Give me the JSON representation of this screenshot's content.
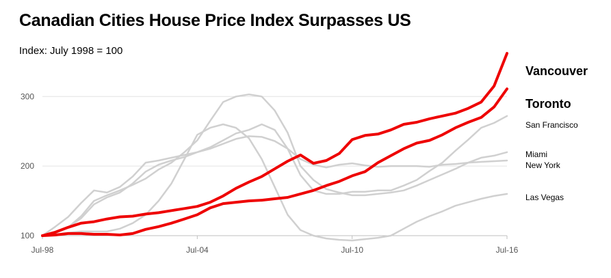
{
  "chart_data": {
    "type": "line",
    "title": "Canadian Cities House Price Index Surpasses US",
    "subtitle": "Index: July 1998 = 100",
    "xlabel": "",
    "ylabel": "",
    "x_range": [
      1998.5,
      2016.5
    ],
    "ylim": [
      100,
      370
    ],
    "y_ticks": [
      100,
      200,
      300
    ],
    "x_tick_labels": [
      "Jul-98",
      "Jul-04",
      "Jul-10",
      "Jul-16"
    ],
    "x_tick_values": [
      1998.5,
      2004.5,
      2010.5,
      2016.5
    ],
    "grid": "horizontal",
    "legend": "inline-right",
    "colors": {
      "canada": "#ee0000",
      "us": "#d0d0d0"
    },
    "series": [
      {
        "name": "Vancouver",
        "group": "canada",
        "x": [
          1998.5,
          1999,
          1999.5,
          2000,
          2000.5,
          2001,
          2001.5,
          2002,
          2002.5,
          2003,
          2003.5,
          2004,
          2004.5,
          2005,
          2005.5,
          2006,
          2006.5,
          2007,
          2007.5,
          2008,
          2008.5,
          2009,
          2009.5,
          2010,
          2010.5,
          2011,
          2011.5,
          2012,
          2012.5,
          2013,
          2013.5,
          2014,
          2014.5,
          2015,
          2015.5,
          2016,
          2016.5
        ],
        "values": [
          100,
          105,
          112,
          118,
          120,
          124,
          127,
          128,
          131,
          133,
          136,
          139,
          142,
          148,
          157,
          168,
          177,
          185,
          196,
          207,
          216,
          204,
          208,
          218,
          238,
          244,
          246,
          252,
          260,
          263,
          268,
          272,
          276,
          283,
          292,
          315,
          362
        ]
      },
      {
        "name": "Toronto",
        "group": "canada",
        "x": [
          1998.5,
          1999,
          1999.5,
          2000,
          2000.5,
          2001,
          2001.5,
          2002,
          2002.5,
          2003,
          2003.5,
          2004,
          2004.5,
          2005,
          2005.5,
          2006,
          2006.5,
          2007,
          2007.5,
          2008,
          2008.5,
          2009,
          2009.5,
          2010,
          2010.5,
          2011,
          2011.5,
          2012,
          2012.5,
          2013,
          2013.5,
          2014,
          2014.5,
          2015,
          2015.5,
          2016,
          2016.5
        ],
        "values": [
          100,
          101,
          103,
          103,
          102,
          102,
          101,
          103,
          109,
          113,
          118,
          124,
          130,
          140,
          146,
          148,
          150,
          151,
          153,
          155,
          160,
          165,
          172,
          178,
          186,
          192,
          205,
          215,
          225,
          233,
          237,
          245,
          255,
          263,
          270,
          285,
          311
        ]
      },
      {
        "name": "San Francisco",
        "group": "us",
        "x": [
          1998.5,
          1999,
          1999.5,
          2000,
          2000.5,
          2001,
          2001.5,
          2002,
          2002.5,
          2003,
          2003.5,
          2004,
          2004.5,
          2005,
          2005.5,
          2006,
          2006.5,
          2007,
          2007.5,
          2008,
          2008.5,
          2009,
          2009.5,
          2010,
          2010.5,
          2011,
          2011.5,
          2012,
          2012.5,
          2013,
          2013.5,
          2014,
          2014.5,
          2015,
          2015.5,
          2016,
          2016.5
        ],
        "values": [
          100,
          113,
          127,
          147,
          165,
          162,
          170,
          185,
          205,
          208,
          212,
          216,
          220,
          227,
          237,
          247,
          252,
          260,
          252,
          225,
          187,
          165,
          160,
          160,
          163,
          163,
          165,
          165,
          172,
          180,
          193,
          205,
          222,
          238,
          255,
          262,
          272
        ]
      },
      {
        "name": "Miami",
        "group": "us",
        "x": [
          1998.5,
          1999,
          1999.5,
          2000,
          2000.5,
          2001,
          2001.5,
          2002,
          2002.5,
          2003,
          2003.5,
          2004,
          2004.5,
          2005,
          2005.5,
          2006,
          2006.5,
          2007,
          2007.5,
          2008,
          2008.5,
          2009,
          2009.5,
          2010,
          2010.5,
          2011,
          2011.5,
          2012,
          2012.5,
          2013,
          2013.5,
          2014,
          2014.5,
          2015,
          2015.5,
          2016,
          2016.5
        ],
        "values": [
          100,
          105,
          112,
          128,
          150,
          158,
          165,
          173,
          182,
          195,
          205,
          220,
          237,
          265,
          292,
          300,
          303,
          300,
          280,
          248,
          200,
          180,
          167,
          162,
          158,
          158,
          160,
          162,
          165,
          172,
          180,
          188,
          196,
          205,
          212,
          215,
          220
        ]
      },
      {
        "name": "New York",
        "group": "us",
        "x": [
          1998.5,
          1999,
          1999.5,
          2000,
          2000.5,
          2001,
          2001.5,
          2002,
          2002.5,
          2003,
          2003.5,
          2004,
          2004.5,
          2005,
          2005.5,
          2006,
          2006.5,
          2007,
          2007.5,
          2008,
          2008.5,
          2009,
          2009.5,
          2010,
          2010.5,
          2011,
          2011.5,
          2012,
          2012.5,
          2013,
          2013.5,
          2014,
          2014.5,
          2015,
          2015.5,
          2016,
          2016.5
        ],
        "values": [
          100,
          104,
          112,
          125,
          145,
          155,
          162,
          175,
          192,
          202,
          208,
          213,
          220,
          225,
          232,
          239,
          243,
          242,
          236,
          225,
          210,
          202,
          198,
          202,
          204,
          201,
          199,
          200,
          200,
          200,
          199,
          202,
          203,
          205,
          206,
          207,
          208
        ]
      },
      {
        "name": "Las Vegas",
        "group": "us",
        "x": [
          1998.5,
          1999,
          1999.5,
          2000,
          2000.5,
          2001,
          2001.5,
          2002,
          2002.5,
          2003,
          2003.5,
          2004,
          2004.5,
          2005,
          2005.5,
          2006,
          2006.5,
          2007,
          2007.5,
          2008,
          2008.5,
          2009,
          2009.5,
          2010,
          2010.5,
          2011,
          2011.5,
          2012,
          2012.5,
          2013,
          2013.5,
          2014,
          2014.5,
          2015,
          2015.5,
          2016,
          2016.5
        ],
        "values": [
          100,
          102,
          104,
          106,
          106,
          106,
          110,
          118,
          130,
          150,
          175,
          210,
          245,
          255,
          260,
          255,
          240,
          210,
          170,
          130,
          108,
          100,
          96,
          94,
          93,
          95,
          97,
          100,
          110,
          120,
          128,
          135,
          143,
          148,
          153,
          157,
          160
        ]
      }
    ]
  }
}
